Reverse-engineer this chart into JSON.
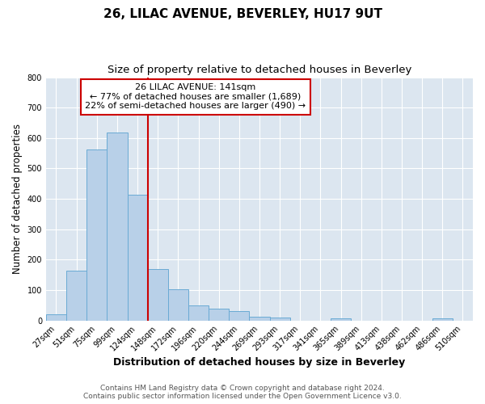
{
  "title": "26, LILAC AVENUE, BEVERLEY, HU17 9UT",
  "subtitle": "Size of property relative to detached houses in Beverley",
  "xlabel": "Distribution of detached houses by size in Beverley",
  "ylabel": "Number of detached properties",
  "categories": [
    "27sqm",
    "51sqm",
    "75sqm",
    "99sqm",
    "124sqm",
    "148sqm",
    "172sqm",
    "196sqm",
    "220sqm",
    "244sqm",
    "269sqm",
    "293sqm",
    "317sqm",
    "341sqm",
    "365sqm",
    "389sqm",
    "413sqm",
    "438sqm",
    "462sqm",
    "486sqm",
    "510sqm"
  ],
  "values": [
    20,
    163,
    563,
    618,
    413,
    170,
    103,
    50,
    40,
    32,
    13,
    10,
    0,
    0,
    6,
    0,
    0,
    0,
    0,
    8,
    0
  ],
  "bar_color": "#b8d0e8",
  "bar_edge_color": "#6aaad4",
  "vline_color": "#cc0000",
  "annotation_title": "26 LILAC AVENUE: 141sqm",
  "annotation_line1": "← 77% of detached houses are smaller (1,689)",
  "annotation_line2": "22% of semi-detached houses are larger (490) →",
  "annotation_box_color": "#ffffff",
  "annotation_box_edge": "#cc0000",
  "ylim": [
    0,
    800
  ],
  "yticks": [
    0,
    100,
    200,
    300,
    400,
    500,
    600,
    700,
    800
  ],
  "plot_bg_color": "#dce6f0",
  "fig_bg_color": "#ffffff",
  "footer_line1": "Contains HM Land Registry data © Crown copyright and database right 2024.",
  "footer_line2": "Contains public sector information licensed under the Open Government Licence v3.0.",
  "title_fontsize": 11,
  "subtitle_fontsize": 9.5,
  "xlabel_fontsize": 9,
  "ylabel_fontsize": 8.5,
  "tick_fontsize": 7,
  "footer_fontsize": 6.5,
  "ann_fontsize": 8
}
